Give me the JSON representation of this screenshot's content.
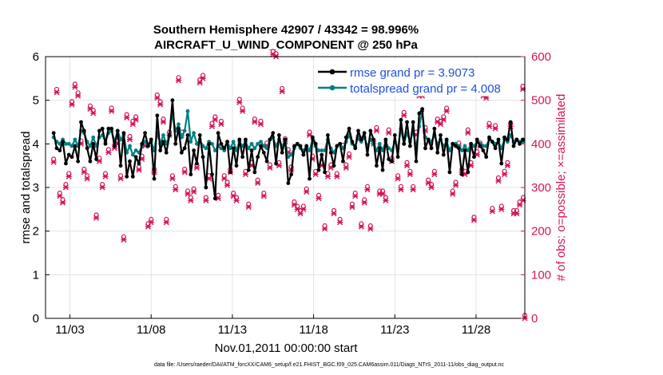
{
  "chart_data": {
    "type": "line",
    "title_line1": "Southern Hemisphere 42907 / 43342 = 98.996%",
    "title_line2": "AIRCRAFT_U_WIND_COMPONENT @ 250 hPa",
    "xlabel": "Nov.01,2011 00:00:00 start",
    "ylabel_left": "rmse and totalspread",
    "ylabel_right": "# of obs: o=possible; ×=assimilated",
    "footer": "data file: /Users/raeder/DAI/ATM_forcXX/CAM6_setup/f.e21.FHIST_BGC.f09_025.CAM6assim.011/Diags_NTrS_2011-11/obs_diag_output.nc",
    "x_range_days": [
      0.5,
      30.0
    ],
    "ylim_left": [
      0,
      6
    ],
    "ylim_right": [
      0,
      600
    ],
    "yticks_left": [
      "0",
      "1",
      "2",
      "3",
      "4",
      "5",
      "6"
    ],
    "yticks_right": [
      "0",
      "100",
      "200",
      "300",
      "400",
      "500",
      "600"
    ],
    "xticks": [
      {
        "day": 2.0,
        "label": "11/03"
      },
      {
        "day": 7.0,
        "label": "11/08"
      },
      {
        "day": 12.0,
        "label": "11/13"
      },
      {
        "day": 17.0,
        "label": "11/18"
      },
      {
        "day": 22.0,
        "label": "11/23"
      },
      {
        "day": 27.0,
        "label": "11/28"
      }
    ],
    "colors": {
      "rmse": "#000000",
      "spread": "#008080",
      "obs": "#d4145a",
      "legend_text": "#1f4fe0",
      "grid": "#dddddd"
    },
    "legend": [
      {
        "name": "rmse grand pr = 3.9073",
        "key": "rmse"
      },
      {
        "name": "totalspread grand pr = 4.008",
        "key": "spread"
      }
    ],
    "rmse_values": [
      4.25,
      3.9,
      3.85,
      4.05,
      3.55,
      3.75,
      3.7,
      3.95,
      3.6,
      4.5,
      4.3,
      3.9,
      3.6,
      4.0,
      3.65,
      4.3,
      4.35,
      4.0,
      4.35,
      4.35,
      3.95,
      4.3,
      3.5,
      4.25,
      3.25,
      3.6,
      3.25,
      3.7,
      3.55,
      4.0,
      4.25,
      3.95,
      4.1,
      3.2,
      4.65,
      3.85,
      4.05,
      3.8,
      4.2,
      5.0,
      4.0,
      4.35,
      3.8,
      3.9,
      4.2,
      3.3,
      3.85,
      3.55,
      4.2,
      3.7,
      3.0,
      4.0,
      3.3,
      2.75,
      4.25,
      4.0,
      3.9,
      4.05,
      3.35,
      3.9,
      3.5,
      4.1,
      3.7,
      4.1,
      3.4,
      3.85,
      3.35,
      3.7,
      3.95,
      3.8,
      3.6,
      4.1,
      4.25,
      3.55,
      4.2,
      3.8,
      4.1,
      3.1,
      3.3,
      3.95,
      4.0,
      3.95,
      3.75,
      3.95,
      3.2,
      4.15,
      4.0,
      3.4,
      3.75,
      3.35,
      4.2,
      3.8,
      3.5,
      3.95,
      4.0,
      3.6,
      4.15,
      4.35,
      4.05,
      3.9,
      4.3,
      4.1,
      4.25,
      3.75,
      4.3,
      4.1,
      3.5,
      3.9,
      3.4,
      4.1,
      3.65,
      3.6,
      4.2,
      3.7,
      4.55,
      4.0,
      4.5,
      3.95,
      4.5,
      3.6,
      4.7,
      4.8,
      3.9,
      4.1,
      3.9,
      4.35,
      3.8,
      4.2,
      3.75,
      4.1,
      3.35,
      4.0,
      3.95,
      3.9,
      3.3,
      3.85,
      3.35,
      4.0,
      3.7,
      4.1,
      3.95,
      3.85,
      3.7,
      4.15,
      4.05,
      3.9,
      4.1,
      3.55,
      4.15,
      4.1,
      4.5,
      3.95,
      4.1,
      4.0,
      4.1
    ],
    "spread_values": [
      4.15,
      4.05,
      4.0,
      4.1,
      4.0,
      4.0,
      3.95,
      4.1,
      3.95,
      4.3,
      4.25,
      4.05,
      3.95,
      4.15,
      3.95,
      4.15,
      4.2,
      4.05,
      4.25,
      4.3,
      4.05,
      4.3,
      4.1,
      4.2,
      3.8,
      3.95,
      3.75,
      3.85,
      3.8,
      3.95,
      4.05,
      3.95,
      4.05,
      3.85,
      4.25,
      4.0,
      4.2,
      4.0,
      4.2,
      4.7,
      4.3,
      4.45,
      4.15,
      4.3,
      4.75,
      4.05,
      4.25,
      4.0,
      4.1,
      3.95,
      3.9,
      4.05,
      4.0,
      3.85,
      3.95,
      3.9,
      3.85,
      4.05,
      3.9,
      4.05,
      3.85,
      4.05,
      3.95,
      4.05,
      3.9,
      4.0,
      3.9,
      4.0,
      4.05,
      3.95,
      3.9,
      4.1,
      4.15,
      3.95,
      4.1,
      3.95,
      4.05,
      3.7,
      3.75,
      3.9,
      4.0,
      3.9,
      3.85,
      3.95,
      3.85,
      4.1,
      3.95,
      3.85,
      3.85,
      3.85,
      4.1,
      3.9,
      3.8,
      3.95,
      4.0,
      3.9,
      4.05,
      4.2,
      4.0,
      3.95,
      4.15,
      4.05,
      4.15,
      3.95,
      4.1,
      4.0,
      3.85,
      4.0,
      3.85,
      4.05,
      3.9,
      3.85,
      4.05,
      3.9,
      4.35,
      4.0,
      4.25,
      4.05,
      4.3,
      3.9,
      4.4,
      4.75,
      4.15,
      4.1,
      4.05,
      4.2,
      4.0,
      4.1,
      3.95,
      4.05,
      3.85,
      4.0,
      4.0,
      3.95,
      3.85,
      3.95,
      3.85,
      4.0,
      3.95,
      4.05,
      4.0,
      3.95,
      3.95,
      4.1,
      4.05,
      4.0,
      4.05,
      3.9,
      4.1,
      4.05,
      4.2,
      4.05,
      4.1,
      4.05,
      4.05
    ],
    "obs_counts": [
      358,
      518,
      280,
      265,
      300,
      325,
      490,
      530,
      510,
      400,
      335,
      320,
      480,
      470,
      230,
      360,
      300,
      325,
      380,
      475,
      390,
      400,
      320,
      180,
      460,
      410,
      445,
      455,
      340,
      365,
      395,
      210,
      220,
      335,
      505,
      490,
      450,
      220,
      420,
      320,
      295,
      545,
      420,
      335,
      285,
      270,
      290,
      345,
      540,
      550,
      270,
      320,
      440,
      455,
      275,
      445,
      320,
      305,
      335,
      280,
      270,
      495,
      475,
      330,
      255,
      350,
      450,
      310,
      445,
      280,
      395,
      345,
      605,
      600,
      350,
      520,
      405,
      380,
      340,
      260,
      250,
      240,
      250,
      290,
      420,
      365,
      330,
      275,
      350,
      205,
      325,
      345,
      240,
      325,
      220,
      390,
      345,
      370,
      255,
      280,
      410,
      210,
      265,
      295,
      205,
      400,
      430,
      285,
      285,
      270,
      425,
      360,
      550,
      320,
      295,
      465,
      350,
      330,
      295,
      420,
      510,
      510,
      430,
      310,
      300,
      330,
      450,
      445,
      455,
      475,
      530,
      285,
      305,
      395,
      335,
      330,
      425,
      350,
      225,
      375,
      395,
      510,
      505,
      440,
      245,
      435,
      315,
      250,
      330,
      350,
      440,
      240,
      240,
      260,
      525
    ],
    "obs_extra": [
      {
        "day": 29.9,
        "value": 270
      },
      {
        "day": 30.0,
        "value": 0
      }
    ]
  }
}
